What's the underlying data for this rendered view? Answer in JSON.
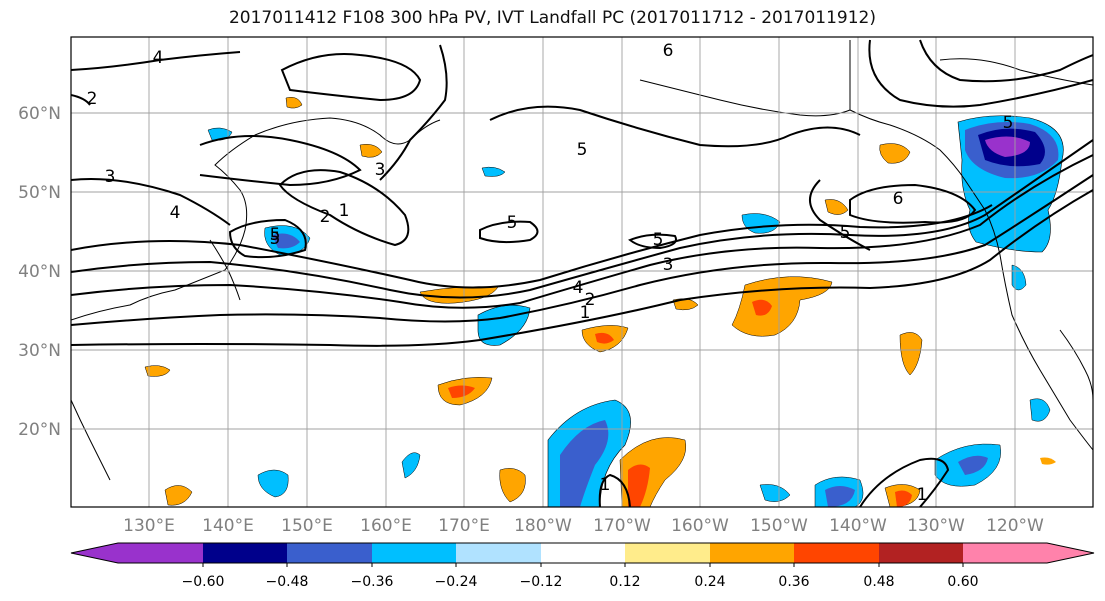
{
  "title": "2017011412 F108 300 hPa PV, IVT Landfall PC (2017011712 - 2017011912)",
  "map": {
    "lat_labels": [
      "60°N",
      "50°N",
      "40°N",
      "30°N",
      "20°N"
    ],
    "lon_labels": [
      "130°E",
      "140°E",
      "150°E",
      "160°E",
      "170°E",
      "180°W",
      "170°W",
      "160°W",
      "150°W",
      "140°W",
      "130°W",
      "120°W"
    ],
    "label_color": "#808080",
    "gridlines": true
  },
  "contours": {
    "color": "#000000",
    "labels": [
      "4",
      "2",
      "3",
      "5",
      "6",
      "3",
      "4",
      "1",
      "2",
      "5",
      "5",
      "5",
      "3",
      "4",
      "2",
      "5",
      "6",
      "5",
      "1",
      "1",
      "1",
      "5"
    ]
  },
  "colorbar": {
    "tick_labels": [
      "−0.60",
      "−0.48",
      "−0.36",
      "−0.24",
      "−0.12",
      "0.12",
      "0.24",
      "0.36",
      "0.48",
      "0.60"
    ],
    "colors": [
      "#9932cc",
      "#00008b",
      "#3a5fcd",
      "#00bfff",
      "#b0e2ff",
      "#ffffff",
      "#ffec8b",
      "#ffa500",
      "#ff4500",
      "#b22222",
      "#ff82ab"
    ],
    "extend": "both"
  }
}
